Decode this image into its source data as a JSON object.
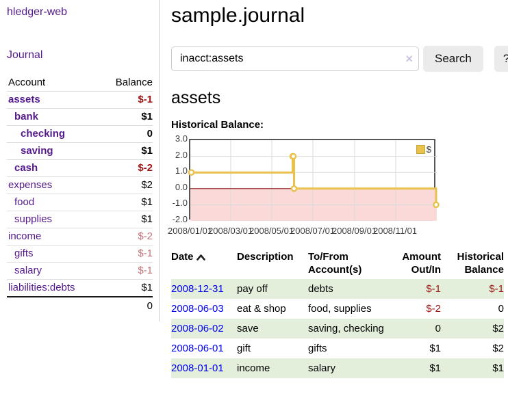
{
  "colors": {
    "link_purple": "#551a8b",
    "link_blue": "#0000ee",
    "negative_strong": "#9e1414",
    "negative_light": "#c2737a",
    "row_green": "#e3efdb",
    "line_gold": "#e9c14b",
    "negative_region_pink": "#fbd9d9",
    "zero_line_red": "#8b1111"
  },
  "app": {
    "brand": "hledger-web"
  },
  "sidebar": {
    "nav_journal": "Journal",
    "col_account": "Account",
    "col_balance": "Balance",
    "accounts": [
      {
        "name": "assets",
        "indent": 0,
        "balance": "$-1",
        "bold": true,
        "balclass": "neg-strong",
        "linkclass": "purple"
      },
      {
        "name": "bank",
        "indent": 1,
        "balance": "$1",
        "bold": true,
        "balclass": "",
        "linkclass": "purple"
      },
      {
        "name": "checking",
        "indent": 2,
        "balance": "0",
        "bold": true,
        "balclass": "",
        "linkclass": "purple"
      },
      {
        "name": "saving",
        "indent": 2,
        "balance": "$1",
        "bold": true,
        "balclass": "",
        "linkclass": "purple"
      },
      {
        "name": "cash",
        "indent": 1,
        "balance": "$-2",
        "bold": true,
        "balclass": "neg-strong",
        "linkclass": "purple"
      },
      {
        "name": "expenses",
        "indent": 0,
        "balance": "$2",
        "bold": false,
        "balclass": "",
        "linkclass": "purple"
      },
      {
        "name": "food",
        "indent": 1,
        "balance": "$1",
        "bold": false,
        "balclass": "",
        "linkclass": "purple"
      },
      {
        "name": "supplies",
        "indent": 1,
        "balance": "$1",
        "bold": false,
        "balclass": "",
        "linkclass": "purple"
      },
      {
        "name": "income",
        "indent": 0,
        "balance": "$-2",
        "bold": false,
        "balclass": "neg-light",
        "linkclass": "purple"
      },
      {
        "name": "gifts",
        "indent": 1,
        "balance": "$-1",
        "bold": false,
        "balclass": "neg-light",
        "linkclass": "purple"
      },
      {
        "name": "salary",
        "indent": 1,
        "balance": "$-1",
        "bold": false,
        "balclass": "neg-light",
        "linkclass": "bluelink"
      },
      {
        "name": "liabilities:debts",
        "indent": 0,
        "balance": "$1",
        "bold": false,
        "balclass": "",
        "linkclass": "purple"
      }
    ],
    "total": "0"
  },
  "header": {
    "title": "sample.journal"
  },
  "search": {
    "value": "inacct:assets",
    "clear_icon": "×",
    "button_label": "Search",
    "help_label": "?"
  },
  "account_page": {
    "heading": "assets",
    "chart_title": "Historical Balance:"
  },
  "chart_data": {
    "type": "line",
    "title": "Historical Balance:",
    "step": true,
    "series": [
      {
        "name": "$",
        "color": "#e9c14b",
        "points": [
          [
            "2008/01/01",
            1
          ],
          [
            "2008/06/01",
            2
          ],
          [
            "2008/06/02",
            2
          ],
          [
            "2008/06/03",
            0
          ],
          [
            "2008/12/31",
            -1
          ]
        ]
      }
    ],
    "x_ticks": [
      "2008/01/01",
      "2008/03/01",
      "2008/05/01",
      "2008/07/01",
      "2008/09/01",
      "2008/11/01"
    ],
    "y_ticks": [
      "3.0",
      "2.0",
      "1.0",
      "0.0",
      "-1.0",
      "-2.0"
    ],
    "ylim": [
      -2,
      3
    ],
    "xlim": [
      "2008/01/01",
      "2008/12/31"
    ],
    "grid": true,
    "legend": {
      "position": "top-right",
      "label": "$"
    }
  },
  "register": {
    "columns": [
      {
        "label": "Date",
        "align": "left",
        "sorted": "asc"
      },
      {
        "label": "Description",
        "align": "left"
      },
      {
        "label": "To/From Account(s)",
        "align": "left"
      },
      {
        "label": "Amount Out/In",
        "align": "right"
      },
      {
        "label": "Historical Balance",
        "align": "right"
      }
    ],
    "rows": [
      {
        "date": "2008-12-31",
        "description": "pay off",
        "accounts": "debts",
        "amount": "$-1",
        "amount_neg": true,
        "balance": "$-1",
        "balance_neg": true,
        "green": true
      },
      {
        "date": "2008-06-03",
        "description": "eat & shop",
        "accounts": "food, supplies",
        "amount": "$-2",
        "amount_neg": true,
        "balance": "0",
        "balance_neg": false,
        "green": false
      },
      {
        "date": "2008-06-02",
        "description": "save",
        "accounts": "saving, checking",
        "amount": "0",
        "amount_neg": false,
        "balance": "$2",
        "balance_neg": false,
        "green": true
      },
      {
        "date": "2008-06-01",
        "description": "gift",
        "accounts": "gifts",
        "amount": "$1",
        "amount_neg": false,
        "balance": "$2",
        "balance_neg": false,
        "green": false
      },
      {
        "date": "2008-01-01",
        "description": "income",
        "accounts": "salary",
        "amount": "$1",
        "amount_neg": false,
        "balance": "$1",
        "balance_neg": false,
        "green": true
      }
    ]
  }
}
